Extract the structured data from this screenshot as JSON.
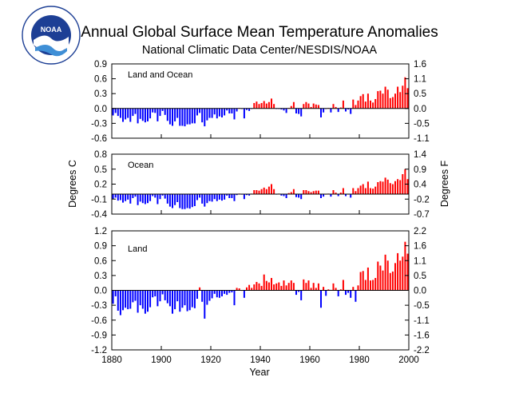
{
  "title": "Annual Global Surface Mean Temperature Anomalies",
  "subtitle": "National Climatic Data Center/NESDIS/NOAA",
  "logo": {
    "name": "noaa-logo",
    "text": "NOAA"
  },
  "colors": {
    "positive": "#ff0000",
    "negative": "#0000ff"
  },
  "chart_data": [
    {
      "type": "bar",
      "title": "Land and Ocean",
      "xlabel": "",
      "ylabel": "",
      "ylabel_right": "",
      "xlim": [
        1880,
        2000
      ],
      "ylim": [
        -0.6,
        0.9
      ],
      "yticks": [
        -0.6,
        -0.3,
        0.0,
        0.3,
        0.6,
        0.9
      ],
      "yticks_right": [
        -1.1,
        -0.5,
        0.0,
        0.5,
        1.1,
        1.6
      ],
      "xticks": [],
      "x": [
        1880,
        1881,
        1882,
        1883,
        1884,
        1885,
        1886,
        1887,
        1888,
        1889,
        1890,
        1891,
        1892,
        1893,
        1894,
        1895,
        1896,
        1897,
        1898,
        1899,
        1900,
        1901,
        1902,
        1903,
        1904,
        1905,
        1906,
        1907,
        1908,
        1909,
        1910,
        1911,
        1912,
        1913,
        1914,
        1915,
        1916,
        1917,
        1918,
        1919,
        1920,
        1921,
        1922,
        1923,
        1924,
        1925,
        1926,
        1927,
        1928,
        1929,
        1930,
        1931,
        1932,
        1933,
        1934,
        1935,
        1936,
        1937,
        1938,
        1939,
        1940,
        1941,
        1942,
        1943,
        1944,
        1945,
        1946,
        1947,
        1948,
        1949,
        1950,
        1951,
        1952,
        1953,
        1954,
        1955,
        1956,
        1957,
        1958,
        1959,
        1960,
        1961,
        1962,
        1963,
        1964,
        1965,
        1966,
        1967,
        1968,
        1969,
        1970,
        1971,
        1972,
        1973,
        1974,
        1975,
        1976,
        1977,
        1978,
        1979,
        1980,
        1981,
        1982,
        1983,
        1984,
        1985,
        1986,
        1987,
        1988,
        1989,
        1990,
        1991,
        1992,
        1993,
        1994,
        1995,
        1996,
        1997,
        1998,
        1999
      ],
      "values": [
        -0.14,
        -0.09,
        -0.15,
        -0.19,
        -0.27,
        -0.22,
        -0.19,
        -0.27,
        -0.15,
        -0.11,
        -0.3,
        -0.21,
        -0.25,
        -0.28,
        -0.26,
        -0.2,
        -0.08,
        -0.09,
        -0.26,
        -0.15,
        -0.05,
        -0.13,
        -0.25,
        -0.32,
        -0.35,
        -0.26,
        -0.19,
        -0.35,
        -0.35,
        -0.36,
        -0.32,
        -0.32,
        -0.3,
        -0.3,
        -0.14,
        -0.09,
        -0.28,
        -0.36,
        -0.24,
        -0.19,
        -0.19,
        -0.12,
        -0.2,
        -0.16,
        -0.18,
        -0.14,
        -0.04,
        -0.1,
        -0.1,
        -0.22,
        -0.06,
        0.01,
        -0.01,
        -0.2,
        -0.03,
        -0.05,
        -0.01,
        0.11,
        0.14,
        0.09,
        0.11,
        0.15,
        0.1,
        0.13,
        0.2,
        0.09,
        -0.01,
        -0.01,
        -0.02,
        -0.04,
        -0.09,
        0.01,
        0.05,
        0.13,
        -0.1,
        -0.11,
        -0.16,
        0.09,
        0.13,
        0.1,
        0.03,
        0.1,
        0.08,
        0.07,
        -0.18,
        -0.08,
        -0.01,
        0.01,
        -0.08,
        0.09,
        0.03,
        -0.07,
        0.02,
        0.16,
        -0.06,
        -0.02,
        -0.11,
        0.18,
        0.07,
        0.16,
        0.25,
        0.29,
        0.14,
        0.3,
        0.16,
        0.12,
        0.19,
        0.35,
        0.36,
        0.3,
        0.44,
        0.38,
        0.21,
        0.23,
        0.3,
        0.44,
        0.33,
        0.46,
        0.63,
        0.41
      ]
    },
    {
      "type": "bar",
      "title": "Ocean",
      "xlabel": "",
      "ylabel": "Degrees C",
      "ylabel_right": "Degrees F",
      "xlim": [
        1880,
        2000
      ],
      "ylim": [
        -0.4,
        0.8
      ],
      "yticks": [
        -0.4,
        -0.1,
        0.2,
        0.5,
        0.8
      ],
      "yticks_right": [
        -0.7,
        -0.2,
        0.4,
        0.9,
        1.4
      ],
      "xticks": [],
      "x": [
        1880,
        1881,
        1882,
        1883,
        1884,
        1885,
        1886,
        1887,
        1888,
        1889,
        1890,
        1891,
        1892,
        1893,
        1894,
        1895,
        1896,
        1897,
        1898,
        1899,
        1900,
        1901,
        1902,
        1903,
        1904,
        1905,
        1906,
        1907,
        1908,
        1909,
        1910,
        1911,
        1912,
        1913,
        1914,
        1915,
        1916,
        1917,
        1918,
        1919,
        1920,
        1921,
        1922,
        1923,
        1924,
        1925,
        1926,
        1927,
        1928,
        1929,
        1930,
        1931,
        1932,
        1933,
        1934,
        1935,
        1936,
        1937,
        1938,
        1939,
        1940,
        1941,
        1942,
        1943,
        1944,
        1945,
        1946,
        1947,
        1948,
        1949,
        1950,
        1951,
        1952,
        1953,
        1954,
        1955,
        1956,
        1957,
        1958,
        1959,
        1960,
        1961,
        1962,
        1963,
        1964,
        1965,
        1966,
        1967,
        1968,
        1969,
        1970,
        1971,
        1972,
        1973,
        1974,
        1975,
        1976,
        1977,
        1978,
        1979,
        1980,
        1981,
        1982,
        1983,
        1984,
        1985,
        1986,
        1987,
        1988,
        1989,
        1990,
        1991,
        1992,
        1993,
        1994,
        1995,
        1996,
        1997,
        1998,
        1999
      ],
      "values": [
        -0.1,
        -0.07,
        -0.13,
        -0.12,
        -0.17,
        -0.14,
        -0.11,
        -0.19,
        -0.08,
        -0.05,
        -0.22,
        -0.15,
        -0.18,
        -0.2,
        -0.18,
        -0.14,
        -0.04,
        -0.07,
        -0.2,
        -0.1,
        -0.03,
        -0.09,
        -0.19,
        -0.25,
        -0.28,
        -0.22,
        -0.16,
        -0.28,
        -0.3,
        -0.3,
        -0.28,
        -0.29,
        -0.26,
        -0.24,
        -0.12,
        -0.07,
        -0.19,
        -0.25,
        -0.18,
        -0.14,
        -0.15,
        -0.1,
        -0.14,
        -0.11,
        -0.13,
        -0.11,
        -0.03,
        -0.08,
        -0.08,
        -0.14,
        -0.02,
        0.01,
        -0.01,
        -0.1,
        -0.02,
        -0.03,
        0.01,
        0.08,
        0.08,
        0.07,
        0.1,
        0.13,
        0.1,
        0.15,
        0.2,
        0.1,
        -0.01,
        0.01,
        -0.03,
        -0.04,
        -0.08,
        0.02,
        0.04,
        0.1,
        -0.06,
        -0.07,
        -0.1,
        0.08,
        0.08,
        0.06,
        0.04,
        0.06,
        0.07,
        0.07,
        -0.08,
        -0.05,
        0.0,
        0.01,
        -0.05,
        0.08,
        0.03,
        -0.04,
        0.03,
        0.12,
        -0.04,
        0.0,
        -0.07,
        0.12,
        0.06,
        0.12,
        0.17,
        0.2,
        0.12,
        0.25,
        0.12,
        0.11,
        0.15,
        0.24,
        0.26,
        0.25,
        0.33,
        0.29,
        0.22,
        0.2,
        0.26,
        0.3,
        0.28,
        0.4,
        0.5,
        0.3
      ]
    },
    {
      "type": "bar",
      "title": "Land",
      "xlabel": "Year",
      "ylabel": "",
      "ylabel_right": "",
      "xlim": [
        1880,
        2000
      ],
      "ylim": [
        -1.2,
        1.2
      ],
      "yticks": [
        -1.2,
        -0.9,
        -0.6,
        -0.3,
        0.0,
        0.3,
        0.6,
        0.9,
        1.2
      ],
      "yticks_right": [
        -2.2,
        -1.6,
        -1.1,
        -0.5,
        0.0,
        0.5,
        1.1,
        1.6,
        2.2
      ],
      "xticks": [
        1880,
        1900,
        1920,
        1940,
        1960,
        1980,
        2000
      ],
      "x": [
        1880,
        1881,
        1882,
        1883,
        1884,
        1885,
        1886,
        1887,
        1888,
        1889,
        1890,
        1891,
        1892,
        1893,
        1894,
        1895,
        1896,
        1897,
        1898,
        1899,
        1900,
        1901,
        1902,
        1903,
        1904,
        1905,
        1906,
        1907,
        1908,
        1909,
        1910,
        1911,
        1912,
        1913,
        1914,
        1915,
        1916,
        1917,
        1918,
        1919,
        1920,
        1921,
        1922,
        1923,
        1924,
        1925,
        1926,
        1927,
        1928,
        1929,
        1930,
        1931,
        1932,
        1933,
        1934,
        1935,
        1936,
        1937,
        1938,
        1939,
        1940,
        1941,
        1942,
        1943,
        1944,
        1945,
        1946,
        1947,
        1948,
        1949,
        1950,
        1951,
        1952,
        1953,
        1954,
        1955,
        1956,
        1957,
        1958,
        1959,
        1960,
        1961,
        1962,
        1963,
        1964,
        1965,
        1966,
        1967,
        1968,
        1969,
        1970,
        1971,
        1972,
        1973,
        1974,
        1975,
        1976,
        1977,
        1978,
        1979,
        1980,
        1981,
        1982,
        1983,
        1984,
        1985,
        1986,
        1987,
        1988,
        1989,
        1990,
        1991,
        1992,
        1993,
        1994,
        1995,
        1996,
        1997,
        1998,
        1999
      ],
      "values": [
        -0.27,
        -0.12,
        -0.41,
        -0.5,
        -0.4,
        -0.35,
        -0.38,
        -0.37,
        -0.24,
        -0.21,
        -0.45,
        -0.3,
        -0.37,
        -0.47,
        -0.43,
        -0.34,
        -0.14,
        -0.12,
        -0.32,
        -0.22,
        -0.08,
        -0.2,
        -0.26,
        -0.32,
        -0.47,
        -0.38,
        -0.22,
        -0.43,
        -0.35,
        -0.3,
        -0.42,
        -0.4,
        -0.34,
        -0.36,
        -0.17,
        0.06,
        -0.23,
        -0.57,
        -0.29,
        -0.21,
        -0.16,
        -0.07,
        -0.14,
        -0.15,
        -0.12,
        -0.07,
        -0.09,
        -0.05,
        -0.04,
        -0.3,
        0.05,
        0.04,
        0.0,
        -0.15,
        0.06,
        0.11,
        0.05,
        0.12,
        0.17,
        0.14,
        0.09,
        0.32,
        0.19,
        0.16,
        0.25,
        0.12,
        0.14,
        0.16,
        0.09,
        0.2,
        0.1,
        0.15,
        0.2,
        0.15,
        -0.09,
        -0.03,
        -0.2,
        0.22,
        0.15,
        0.2,
        0.05,
        0.15,
        0.05,
        0.14,
        -0.35,
        0.07,
        -0.11,
        0.02,
        0.01,
        0.14,
        0.05,
        -0.12,
        0.02,
        0.21,
        -0.09,
        -0.05,
        -0.15,
        0.07,
        -0.23,
        0.1,
        0.37,
        0.39,
        0.21,
        0.46,
        0.2,
        0.21,
        0.25,
        0.58,
        0.5,
        0.4,
        0.72,
        0.6,
        0.35,
        0.38,
        0.55,
        0.75,
        0.6,
        0.68,
        0.98,
        0.74
      ]
    }
  ]
}
